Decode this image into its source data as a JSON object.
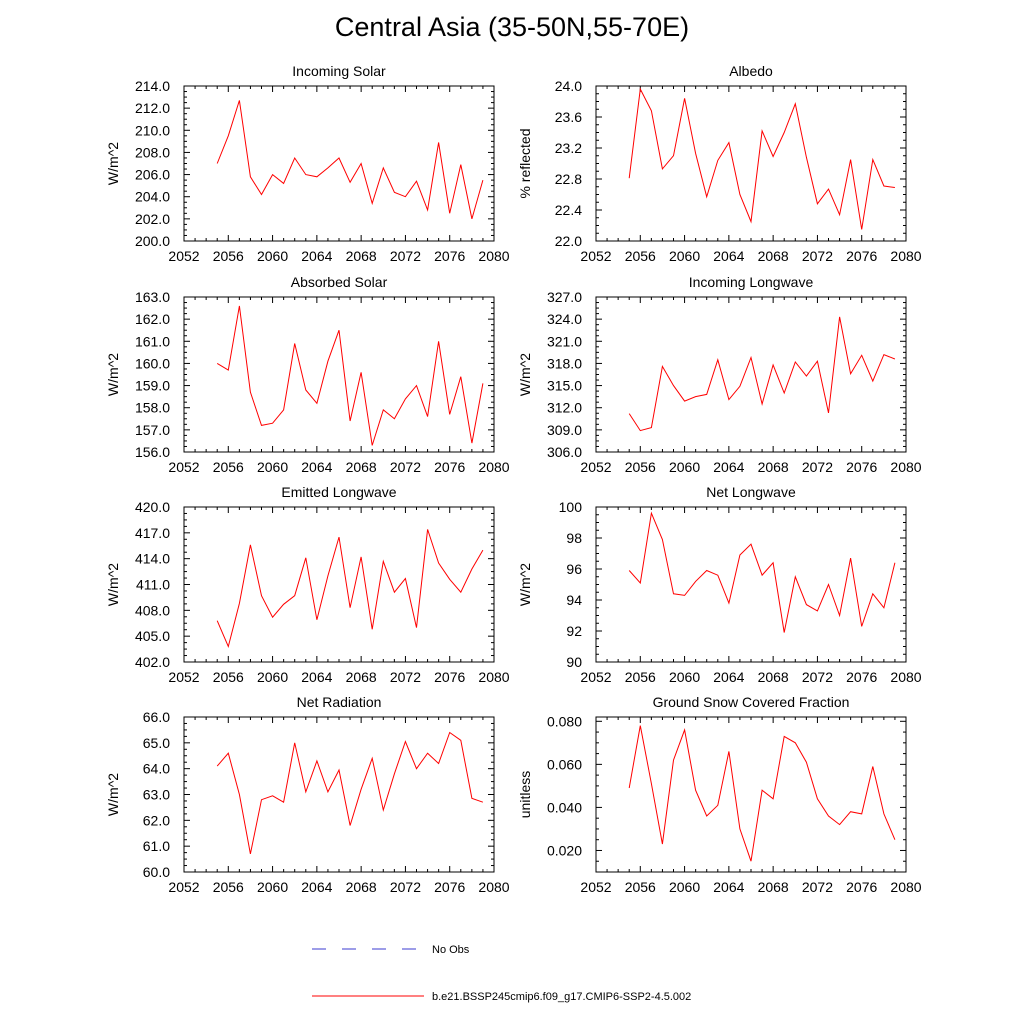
{
  "title": "Central Asia (35-50N,55-70E)",
  "chart_data": [
    {
      "type": "line",
      "title": "Incoming Solar",
      "ylabel": "W/m^2",
      "xlim": [
        2052,
        2080
      ],
      "ylim": [
        200.0,
        214.0
      ],
      "xticks": [
        2052,
        2056,
        2060,
        2064,
        2068,
        2072,
        2076,
        2080
      ],
      "yticks": [
        "200.0",
        "202.0",
        "204.0",
        "206.0",
        "208.0",
        "210.0",
        "212.0",
        "214.0"
      ],
      "x": [
        2055,
        2056,
        2057,
        2058,
        2059,
        2060,
        2061,
        2062,
        2063,
        2064,
        2065,
        2066,
        2067,
        2068,
        2069,
        2070,
        2071,
        2072,
        2073,
        2074,
        2075,
        2076,
        2077,
        2078,
        2079
      ],
      "series": [
        {
          "name": "b.e21.BSSP245cmip6.f09_g17.CMIP6-SSP2-4.5.002",
          "color": "#ff0000",
          "values": [
            207.0,
            209.5,
            212.7,
            205.8,
            204.2,
            206.0,
            205.2,
            207.5,
            206.0,
            205.8,
            206.6,
            207.5,
            205.3,
            207.0,
            203.4,
            206.6,
            204.4,
            204.0,
            205.4,
            202.8,
            208.9,
            202.5,
            206.9,
            202.0,
            205.5
          ]
        }
      ]
    },
    {
      "type": "line",
      "title": "Albedo",
      "ylabel": "% reflected",
      "xlim": [
        2052,
        2080
      ],
      "ylim": [
        22.0,
        24.0
      ],
      "xticks": [
        2052,
        2056,
        2060,
        2064,
        2068,
        2072,
        2076,
        2080
      ],
      "yticks": [
        "22.0",
        "22.4",
        "22.8",
        "23.2",
        "23.6",
        "24.0"
      ],
      "x": [
        2055,
        2056,
        2057,
        2058,
        2059,
        2060,
        2061,
        2062,
        2063,
        2064,
        2065,
        2066,
        2067,
        2068,
        2069,
        2070,
        2071,
        2072,
        2073,
        2074,
        2075,
        2076,
        2077,
        2078,
        2079
      ],
      "series": [
        {
          "name": "b.e21.BSSP245cmip6.f09_g17.CMIP6-SSP2-4.5.002",
          "color": "#ff0000",
          "values": [
            22.81,
            23.96,
            23.68,
            22.93,
            23.1,
            23.84,
            23.13,
            22.57,
            23.04,
            23.27,
            22.6,
            22.25,
            23.42,
            23.09,
            23.4,
            23.77,
            23.08,
            22.48,
            22.67,
            22.34,
            23.05,
            22.15,
            23.05,
            22.71,
            22.69
          ]
        }
      ]
    },
    {
      "type": "line",
      "title": "Absorbed Solar",
      "ylabel": "W/m^2",
      "xlim": [
        2052,
        2080
      ],
      "ylim": [
        156.0,
        163.0
      ],
      "xticks": [
        2052,
        2056,
        2060,
        2064,
        2068,
        2072,
        2076,
        2080
      ],
      "yticks": [
        "156.0",
        "157.0",
        "158.0",
        "159.0",
        "160.0",
        "161.0",
        "162.0",
        "163.0"
      ],
      "x": [
        2055,
        2056,
        2057,
        2058,
        2059,
        2060,
        2061,
        2062,
        2063,
        2064,
        2065,
        2066,
        2067,
        2068,
        2069,
        2070,
        2071,
        2072,
        2073,
        2074,
        2075,
        2076,
        2077,
        2078,
        2079
      ],
      "series": [
        {
          "name": "b.e21.BSSP245cmip6.f09_g17.CMIP6-SSP2-4.5.002",
          "color": "#ff0000",
          "values": [
            160.0,
            159.7,
            162.6,
            158.7,
            157.2,
            157.3,
            157.9,
            160.9,
            158.8,
            158.2,
            160.1,
            161.5,
            157.4,
            159.6,
            156.3,
            157.9,
            157.5,
            158.4,
            159.0,
            157.6,
            161.0,
            157.7,
            159.4,
            156.4,
            159.1
          ]
        }
      ]
    },
    {
      "type": "line",
      "title": "Incoming Longwave",
      "ylabel": "W/m^2",
      "xlim": [
        2052,
        2080
      ],
      "ylim": [
        306.0,
        327.0
      ],
      "xticks": [
        2052,
        2056,
        2060,
        2064,
        2068,
        2072,
        2076,
        2080
      ],
      "yticks": [
        "306.0",
        "309.0",
        "312.0",
        "315.0",
        "318.0",
        "321.0",
        "324.0",
        "327.0"
      ],
      "x": [
        2055,
        2056,
        2057,
        2058,
        2059,
        2060,
        2061,
        2062,
        2063,
        2064,
        2065,
        2066,
        2067,
        2068,
        2069,
        2070,
        2071,
        2072,
        2073,
        2074,
        2075,
        2076,
        2077,
        2078,
        2079
      ],
      "series": [
        {
          "name": "b.e21.BSSP245cmip6.f09_g17.CMIP6-SSP2-4.5.002",
          "color": "#ff0000",
          "values": [
            311.2,
            308.9,
            309.3,
            317.6,
            315.0,
            312.9,
            313.5,
            313.8,
            318.5,
            313.1,
            314.9,
            318.8,
            312.5,
            317.8,
            314.0,
            318.2,
            316.3,
            318.3,
            311.3,
            324.3,
            316.6,
            319.1,
            315.6,
            319.2,
            318.6
          ]
        }
      ]
    },
    {
      "type": "line",
      "title": "Emitted Longwave",
      "ylabel": "W/m^2",
      "xlim": [
        2052,
        2080
      ],
      "ylim": [
        402.0,
        420.0
      ],
      "xticks": [
        2052,
        2056,
        2060,
        2064,
        2068,
        2072,
        2076,
        2080
      ],
      "yticks": [
        "402.0",
        "405.0",
        "408.0",
        "411.0",
        "414.0",
        "417.0",
        "420.0"
      ],
      "x": [
        2055,
        2056,
        2057,
        2058,
        2059,
        2060,
        2061,
        2062,
        2063,
        2064,
        2065,
        2066,
        2067,
        2068,
        2069,
        2070,
        2071,
        2072,
        2073,
        2074,
        2075,
        2076,
        2077,
        2078,
        2079
      ],
      "series": [
        {
          "name": "b.e21.BSSP245cmip6.f09_g17.CMIP6-SSP2-4.5.002",
          "color": "#ff0000",
          "values": [
            406.8,
            403.8,
            408.8,
            415.6,
            409.7,
            407.2,
            408.7,
            409.7,
            414.1,
            406.9,
            412.0,
            416.5,
            408.3,
            414.2,
            405.8,
            413.7,
            410.1,
            411.7,
            406.0,
            417.4,
            413.5,
            411.6,
            410.1,
            412.8,
            415.0
          ]
        }
      ]
    },
    {
      "type": "line",
      "title": "Net Longwave",
      "ylabel": "W/m^2",
      "xlim": [
        2052,
        2080
      ],
      "ylim": [
        90,
        100
      ],
      "xticks": [
        2052,
        2056,
        2060,
        2064,
        2068,
        2072,
        2076,
        2080
      ],
      "yticks": [
        "90",
        "92",
        "94",
        "96",
        "98",
        "100"
      ],
      "x": [
        2055,
        2056,
        2057,
        2058,
        2059,
        2060,
        2061,
        2062,
        2063,
        2064,
        2065,
        2066,
        2067,
        2068,
        2069,
        2070,
        2071,
        2072,
        2073,
        2074,
        2075,
        2076,
        2077,
        2078,
        2079
      ],
      "series": [
        {
          "name": "b.e21.BSSP245cmip6.f09_g17.CMIP6-SSP2-4.5.002",
          "color": "#ff0000",
          "values": [
            95.9,
            95.1,
            99.6,
            97.9,
            94.4,
            94.3,
            95.2,
            95.9,
            95.6,
            93.8,
            96.9,
            97.6,
            95.6,
            96.4,
            91.9,
            95.5,
            93.7,
            93.3,
            95.0,
            93.0,
            96.7,
            92.3,
            94.4,
            93.5,
            96.4
          ]
        }
      ]
    },
    {
      "type": "line",
      "title": "Net Radiation",
      "ylabel": "W/m^2",
      "xlim": [
        2052,
        2080
      ],
      "ylim": [
        60.0,
        66.0
      ],
      "xticks": [
        2052,
        2056,
        2060,
        2064,
        2068,
        2072,
        2076,
        2080
      ],
      "yticks": [
        "60.0",
        "61.0",
        "62.0",
        "63.0",
        "64.0",
        "65.0",
        "66.0"
      ],
      "x": [
        2055,
        2056,
        2057,
        2058,
        2059,
        2060,
        2061,
        2062,
        2063,
        2064,
        2065,
        2066,
        2067,
        2068,
        2069,
        2070,
        2071,
        2072,
        2073,
        2074,
        2075,
        2076,
        2077,
        2078,
        2079
      ],
      "series": [
        {
          "name": "b.e21.BSSP245cmip6.f09_g17.CMIP6-SSP2-4.5.002",
          "color": "#ff0000",
          "values": [
            64.1,
            64.6,
            63.0,
            60.7,
            62.8,
            62.95,
            62.7,
            65.0,
            63.1,
            64.3,
            63.1,
            63.95,
            61.8,
            63.2,
            64.4,
            62.4,
            63.8,
            65.05,
            64.0,
            64.6,
            64.2,
            65.4,
            65.1,
            62.85,
            62.7
          ]
        }
      ]
    },
    {
      "type": "line",
      "title": "Ground Snow Covered Fraction",
      "ylabel": "unitless",
      "xlim": [
        2052,
        2080
      ],
      "ylim": [
        0.01,
        0.082
      ],
      "xticks": [
        2052,
        2056,
        2060,
        2064,
        2068,
        2072,
        2076,
        2080
      ],
      "yticks": [
        "0.020",
        "0.040",
        "0.060",
        "0.080"
      ],
      "x": [
        2055,
        2056,
        2057,
        2058,
        2059,
        2060,
        2061,
        2062,
        2063,
        2064,
        2065,
        2066,
        2067,
        2068,
        2069,
        2070,
        2071,
        2072,
        2073,
        2074,
        2075,
        2076,
        2077,
        2078,
        2079
      ],
      "series": [
        {
          "name": "b.e21.BSSP245cmip6.f09_g17.CMIP6-SSP2-4.5.002",
          "color": "#ff0000",
          "values": [
            0.049,
            0.078,
            0.051,
            0.023,
            0.062,
            0.076,
            0.048,
            0.036,
            0.041,
            0.066,
            0.03,
            0.015,
            0.048,
            0.044,
            0.073,
            0.07,
            0.061,
            0.044,
            0.036,
            0.032,
            0.038,
            0.037,
            0.059,
            0.037,
            0.025
          ]
        }
      ]
    }
  ],
  "legend": [
    {
      "label": "No Obs",
      "color": "#3b3bd0",
      "style": "dashed"
    },
    {
      "label": "b.e21.BSSP245cmip6.f09_g17.CMIP6-SSP2-4.5.002",
      "color": "#ff0000",
      "style": "solid"
    }
  ]
}
